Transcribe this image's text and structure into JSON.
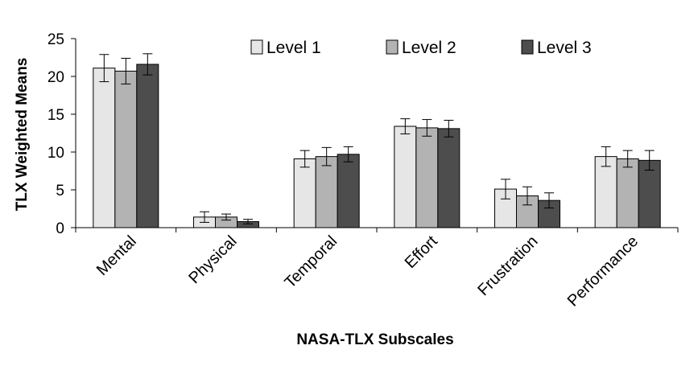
{
  "chart_data": {
    "type": "bar",
    "title": "",
    "xlabel": "NASA-TLX Subscales",
    "ylabel": "TLX Weighted Means",
    "ylim": [
      0,
      25
    ],
    "yticks": [
      0,
      5,
      10,
      15,
      20,
      25
    ],
    "grid": false,
    "legend_position": "top-right",
    "categories": [
      "Mental",
      "Physical",
      "Temporal",
      "Effort",
      "Frustration",
      "Performance"
    ],
    "series": [
      {
        "name": "Level 1",
        "color": "#e6e6e6",
        "values": [
          21.1,
          1.4,
          9.1,
          13.4,
          5.1,
          9.4
        ],
        "error": [
          1.8,
          0.7,
          1.1,
          1.0,
          1.3,
          1.3
        ]
      },
      {
        "name": "Level 2",
        "color": "#b3b3b3",
        "values": [
          20.7,
          1.4,
          9.4,
          13.2,
          4.2,
          9.1
        ],
        "error": [
          1.7,
          0.4,
          1.2,
          1.1,
          1.2,
          1.1
        ]
      },
      {
        "name": "Level 3",
        "color": "#4d4d4d",
        "values": [
          21.6,
          0.8,
          9.7,
          13.1,
          3.6,
          8.9
        ],
        "error": [
          1.4,
          0.3,
          1.0,
          1.1,
          1.0,
          1.3
        ]
      }
    ]
  }
}
